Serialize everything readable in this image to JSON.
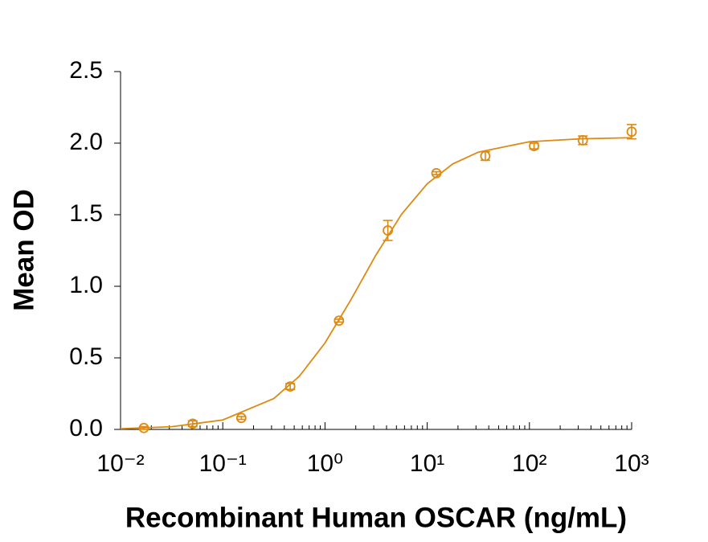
{
  "chart_data": {
    "type": "scatter",
    "x_label": "Recombinant Human OSCAR (ng/mL)",
    "y_label": "Mean OD",
    "xscale": "log",
    "xlim": [
      0.01,
      1000
    ],
    "xticks": [
      {
        "value": 0.01,
        "label": "10⁻²"
      },
      {
        "value": 0.1,
        "label": "10⁻¹"
      },
      {
        "value": 1,
        "label": "10⁰"
      },
      {
        "value": 10,
        "label": "10¹"
      },
      {
        "value": 100,
        "label": "10²"
      },
      {
        "value": 1000,
        "label": "10³"
      }
    ],
    "ylim": [
      0,
      2.5
    ],
    "yticks": [
      {
        "value": 0,
        "label": "0.0"
      },
      0.5,
      {
        "value": 1,
        "label": "1.0"
      },
      1.5,
      {
        "value": 2,
        "label": "2.0"
      },
      2.5
    ],
    "color": "#dc8a12",
    "series": [
      {
        "x": [
          0.0169,
          0.0508,
          0.152,
          0.457,
          1.37,
          4.12,
          12.3,
          37,
          111,
          333,
          1000
        ],
        "values": [
          0.01,
          0.04,
          0.08,
          0.3,
          0.76,
          1.39,
          1.79,
          1.91,
          1.98,
          2.02,
          2.08
        ],
        "errors": [
          0.01,
          0.02,
          0.01,
          0.02,
          0.01,
          0.07,
          0.01,
          0.03,
          0.02,
          0.03,
          0.05
        ]
      },
      {
        "type": "line",
        "x": [
          0.01,
          0.0316,
          0.1,
          0.316,
          0.562,
          1,
          1.78,
          3.16,
          5.62,
          10,
          17.8,
          31.6,
          100,
          316,
          1000
        ],
        "values": [
          0.005,
          0.019,
          0.066,
          0.216,
          0.372,
          0.604,
          0.902,
          1.22,
          1.504,
          1.716,
          1.855,
          1.937,
          2.01,
          2.03,
          2.038
        ]
      }
    ]
  }
}
